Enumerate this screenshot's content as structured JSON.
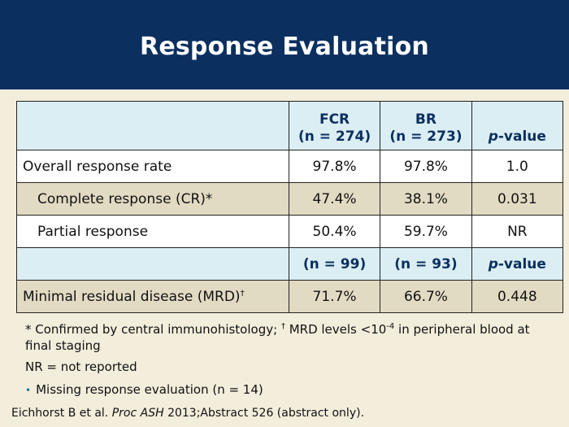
{
  "title": "Response Evaluation",
  "table": {
    "header1": {
      "fcr": "FCR",
      "fcr_n": "(n = 274)",
      "br": "BR",
      "br_n": "(n = 273)",
      "p_prefix": "p",
      "p_suffix": "-value"
    },
    "rows1": [
      {
        "label": "Overall response rate",
        "fcr": "97.8%",
        "br": "97.8%",
        "p": "1.0"
      },
      {
        "label": "Complete response (CR)*",
        "fcr": "47.4%",
        "br": "38.1%",
        "p": "0.031"
      },
      {
        "label": "Partial response",
        "fcr": "50.4%",
        "br": "59.7%",
        "p": "NR"
      }
    ],
    "header2": {
      "fcr_n": "(n = 99)",
      "br_n": "(n = 93)",
      "p_prefix": "p",
      "p_suffix": "-value"
    },
    "rows2": [
      {
        "label": "Minimal residual disease (MRD)",
        "label_sup": "†",
        "fcr": "71.7%",
        "br": "66.7%",
        "p": "0.448"
      }
    ]
  },
  "notes": {
    "footnote_a": "* Confirmed by central immunohistology; ",
    "footnote_dagger": "†",
    "footnote_b": " MRD levels <10",
    "footnote_exp": "-4",
    "footnote_c": " in peripheral blood at final staging",
    "nr": "NR =  not reported",
    "bullet": "Missing response evaluation (n = 14)"
  },
  "citation": {
    "authors": "Eichhorst B et al. ",
    "journal": "Proc ASH",
    "rest": " 2013;Abstract 526 (abstract only)."
  }
}
